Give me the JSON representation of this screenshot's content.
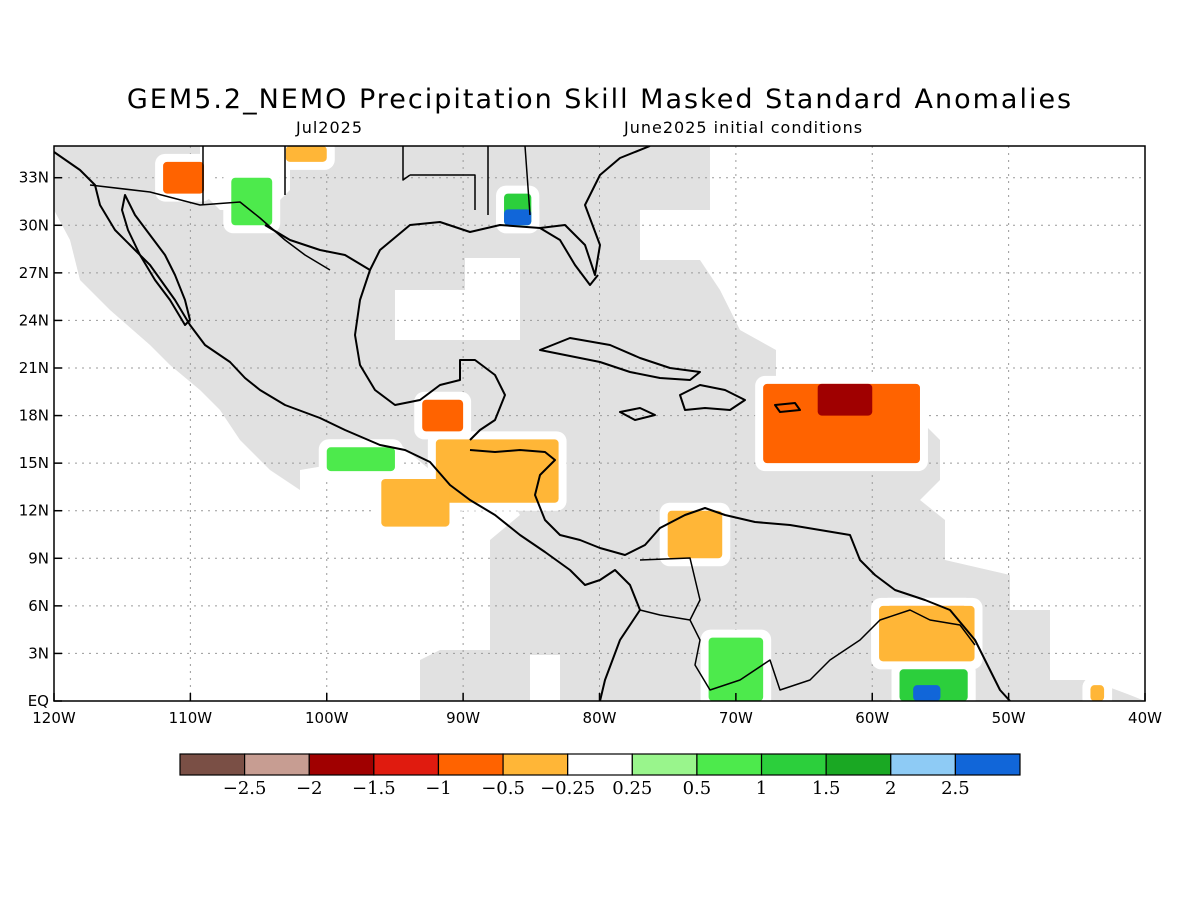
{
  "title": "GEM5.2_NEMO Precipitation Skill Masked Standard Anomalies",
  "subtitle_left": "Jul2025",
  "subtitle_right": "June2025 initial conditions",
  "map": {
    "lon_range": [
      -120,
      -40
    ],
    "lat_range": [
      0,
      35
    ],
    "x_ticks": [
      {
        "value": -120,
        "label": "120W"
      },
      {
        "value": -110,
        "label": "110W"
      },
      {
        "value": -100,
        "label": "100W"
      },
      {
        "value": -90,
        "label": "90W"
      },
      {
        "value": -80,
        "label": "80W"
      },
      {
        "value": -70,
        "label": "70W"
      },
      {
        "value": -60,
        "label": "60W"
      },
      {
        "value": -50,
        "label": "50W"
      },
      {
        "value": -40,
        "label": "40W"
      }
    ],
    "y_ticks": [
      {
        "value": 0,
        "label": "EQ"
      },
      {
        "value": 3,
        "label": "3N"
      },
      {
        "value": 6,
        "label": "6N"
      },
      {
        "value": 9,
        "label": "9N"
      },
      {
        "value": 12,
        "label": "12N"
      },
      {
        "value": 15,
        "label": "15N"
      },
      {
        "value": 18,
        "label": "18N"
      },
      {
        "value": 21,
        "label": "21N"
      },
      {
        "value": 24,
        "label": "24N"
      },
      {
        "value": 27,
        "label": "27N"
      },
      {
        "value": 30,
        "label": "30N"
      },
      {
        "value": 33,
        "label": "33N"
      }
    ],
    "grid": true,
    "mask_color": "#e1e1e1"
  },
  "colorbar": {
    "colors": [
      "#7a4f45",
      "#c79d92",
      "#a00000",
      "#e01b0f",
      "#ff6300",
      "#ffb637",
      "#ffffff",
      "#99f58c",
      "#4dea4c",
      "#2ccf3c",
      "#1aa823",
      "#8ecbf5",
      "#1166d9"
    ],
    "labels": [
      "−2.5",
      "−2",
      "−1.5",
      "−1",
      "−0.5",
      "−0.25",
      "0.25",
      "0.5",
      "1",
      "1.5",
      "2",
      "2.5"
    ]
  },
  "anomaly_regions": [
    {
      "name": "eastern-caribbean",
      "level": "-1",
      "lon": [
        -68,
        -56.5
      ],
      "lat": [
        15,
        20
      ]
    },
    {
      "name": "leeward-islands",
      "level": "-1.5",
      "lon": [
        -64,
        -60
      ],
      "lat": [
        18,
        20
      ]
    },
    {
      "name": "guianas",
      "level": "-1",
      "lon": [
        -59,
        -53
      ],
      "lat": [
        3,
        6
      ]
    },
    {
      "name": "guianas-edge",
      "level": "-0.5",
      "lon": [
        -59.5,
        -52.5
      ],
      "lat": [
        2.5,
        6
      ]
    },
    {
      "name": "amapa",
      "level": "1",
      "lon": [
        -58,
        -53
      ],
      "lat": [
        0,
        2
      ]
    },
    {
      "name": "amapa-core",
      "level": "2.5",
      "lon": [
        -57,
        -55
      ],
      "lat": [
        0,
        1
      ]
    },
    {
      "name": "honduras",
      "level": "-1",
      "lon": [
        -90,
        -84
      ],
      "lat": [
        14,
        16
      ]
    },
    {
      "name": "honduras-edge",
      "level": "-0.5",
      "lon": [
        -92,
        -83
      ],
      "lat": [
        12.5,
        16.5
      ]
    },
    {
      "name": "yucatan-south",
      "level": "-1",
      "lon": [
        -93,
        -90
      ],
      "lat": [
        17,
        19
      ]
    },
    {
      "name": "pacific-12n",
      "level": "-1",
      "lon": [
        -95,
        -92
      ],
      "lat": [
        11.5,
        13
      ]
    },
    {
      "name": "pacific-12n-edge",
      "level": "-0.5",
      "lon": [
        -96,
        -91
      ],
      "lat": [
        11,
        14
      ]
    },
    {
      "name": "pacific-15n",
      "level": "0.5",
      "lon": [
        -100,
        -95
      ],
      "lat": [
        14.5,
        16
      ]
    },
    {
      "name": "colombia-coast",
      "level": "-0.5",
      "lon": [
        -75,
        -71
      ],
      "lat": [
        9,
        12
      ]
    },
    {
      "name": "venezuela-llanos",
      "level": "0.5",
      "lon": [
        -72,
        -68
      ],
      "lat": [
        0,
        4
      ]
    },
    {
      "name": "arizona",
      "level": "-1",
      "lon": [
        -112,
        -109
      ],
      "lat": [
        32,
        34
      ]
    },
    {
      "name": "sonora",
      "level": "0.5",
      "lon": [
        -107,
        -104
      ],
      "lat": [
        30,
        33
      ]
    },
    {
      "name": "new-mexico",
      "level": "-0.5",
      "lon": [
        -103,
        -100
      ],
      "lat": [
        34,
        35
      ]
    },
    {
      "name": "alabama-coast",
      "level": "1",
      "lon": [
        -87,
        -85
      ],
      "lat": [
        30,
        32
      ]
    },
    {
      "name": "alabama-coast-core",
      "level": "2.5",
      "lon": [
        -87,
        -85
      ],
      "lat": [
        30,
        31
      ]
    },
    {
      "name": "brazil-east",
      "level": "-0.5",
      "lon": [
        -44,
        -43
      ],
      "lat": [
        0,
        1
      ]
    }
  ]
}
